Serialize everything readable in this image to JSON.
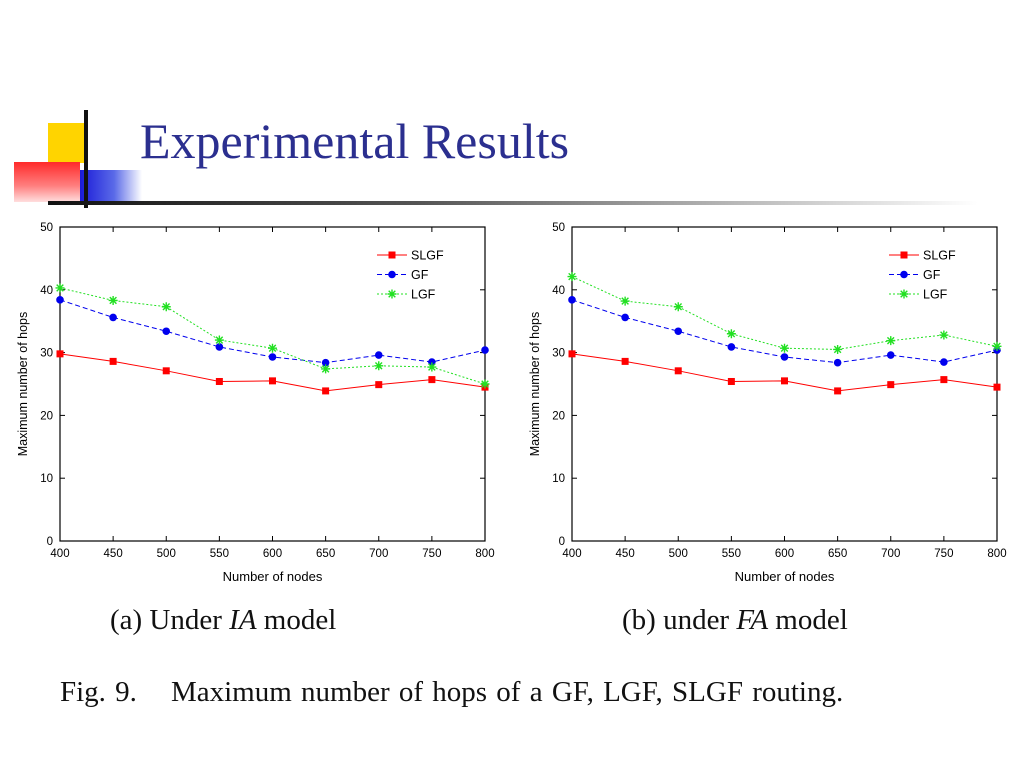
{
  "slide": {
    "title": "Experimental Results"
  },
  "captions": {
    "a": {
      "prefix": "(a) Under ",
      "model": "IA",
      "suffix": " model"
    },
    "b": {
      "prefix": "(b) under ",
      "model": "FA",
      "suffix": " model"
    },
    "figure": {
      "label": "Fig. 9.",
      "text": "Maximum number of hops of a GF, LGF, SLGF routing."
    }
  },
  "colors": {
    "title": "#2b2f8f",
    "SLGF": "#ff0000",
    "GF": "#0000ee",
    "LGF": "#22e022"
  },
  "chart_data": [
    {
      "type": "line",
      "xlabel": "Number of nodes",
      "ylabel": "Maximum number of hops",
      "x": [
        400,
        450,
        500,
        550,
        600,
        650,
        700,
        750,
        800
      ],
      "xlim": [
        400,
        800
      ],
      "ylim": [
        0,
        50
      ],
      "xticks": [
        400,
        450,
        500,
        550,
        600,
        650,
        700,
        750,
        800
      ],
      "yticks": [
        0,
        10,
        20,
        30,
        40,
        50
      ],
      "grid": false,
      "legend": "top-right",
      "series": [
        {
          "name": "SLGF",
          "marker": "square",
          "dash": "solid",
          "color": "#ff0000",
          "values": [
            29.8,
            28.6,
            27.1,
            25.4,
            25.5,
            23.9,
            24.9,
            25.7,
            24.5
          ]
        },
        {
          "name": "GF",
          "marker": "circle",
          "dash": "dashed",
          "color": "#0000ee",
          "values": [
            38.4,
            35.6,
            33.4,
            30.9,
            29.3,
            28.4,
            29.6,
            28.5,
            30.4
          ]
        },
        {
          "name": "LGF",
          "marker": "star",
          "dash": "dotted",
          "color": "#22e022",
          "values": [
            40.3,
            38.3,
            37.3,
            32.0,
            30.7,
            27.4,
            27.9,
            27.7,
            25.0
          ]
        }
      ]
    },
    {
      "type": "line",
      "xlabel": "Number of nodes",
      "ylabel": "Maximum number of hops",
      "x": [
        400,
        450,
        500,
        550,
        600,
        650,
        700,
        750,
        800
      ],
      "xlim": [
        400,
        800
      ],
      "ylim": [
        0,
        50
      ],
      "xticks": [
        400,
        450,
        500,
        550,
        600,
        650,
        700,
        750,
        800
      ],
      "yticks": [
        0,
        10,
        20,
        30,
        40,
        50
      ],
      "grid": false,
      "legend": "top-right",
      "series": [
        {
          "name": "SLGF",
          "marker": "square",
          "dash": "solid",
          "color": "#ff0000",
          "values": [
            29.8,
            28.6,
            27.1,
            25.4,
            25.5,
            23.9,
            24.9,
            25.7,
            24.5
          ]
        },
        {
          "name": "GF",
          "marker": "circle",
          "dash": "dashed",
          "color": "#0000ee",
          "values": [
            38.4,
            35.6,
            33.4,
            30.9,
            29.3,
            28.4,
            29.6,
            28.5,
            30.4
          ]
        },
        {
          "name": "LGF",
          "marker": "star",
          "dash": "dotted",
          "color": "#22e022",
          "values": [
            42.1,
            38.2,
            37.3,
            33.0,
            30.7,
            30.5,
            31.9,
            32.8,
            31.0
          ]
        }
      ]
    }
  ]
}
